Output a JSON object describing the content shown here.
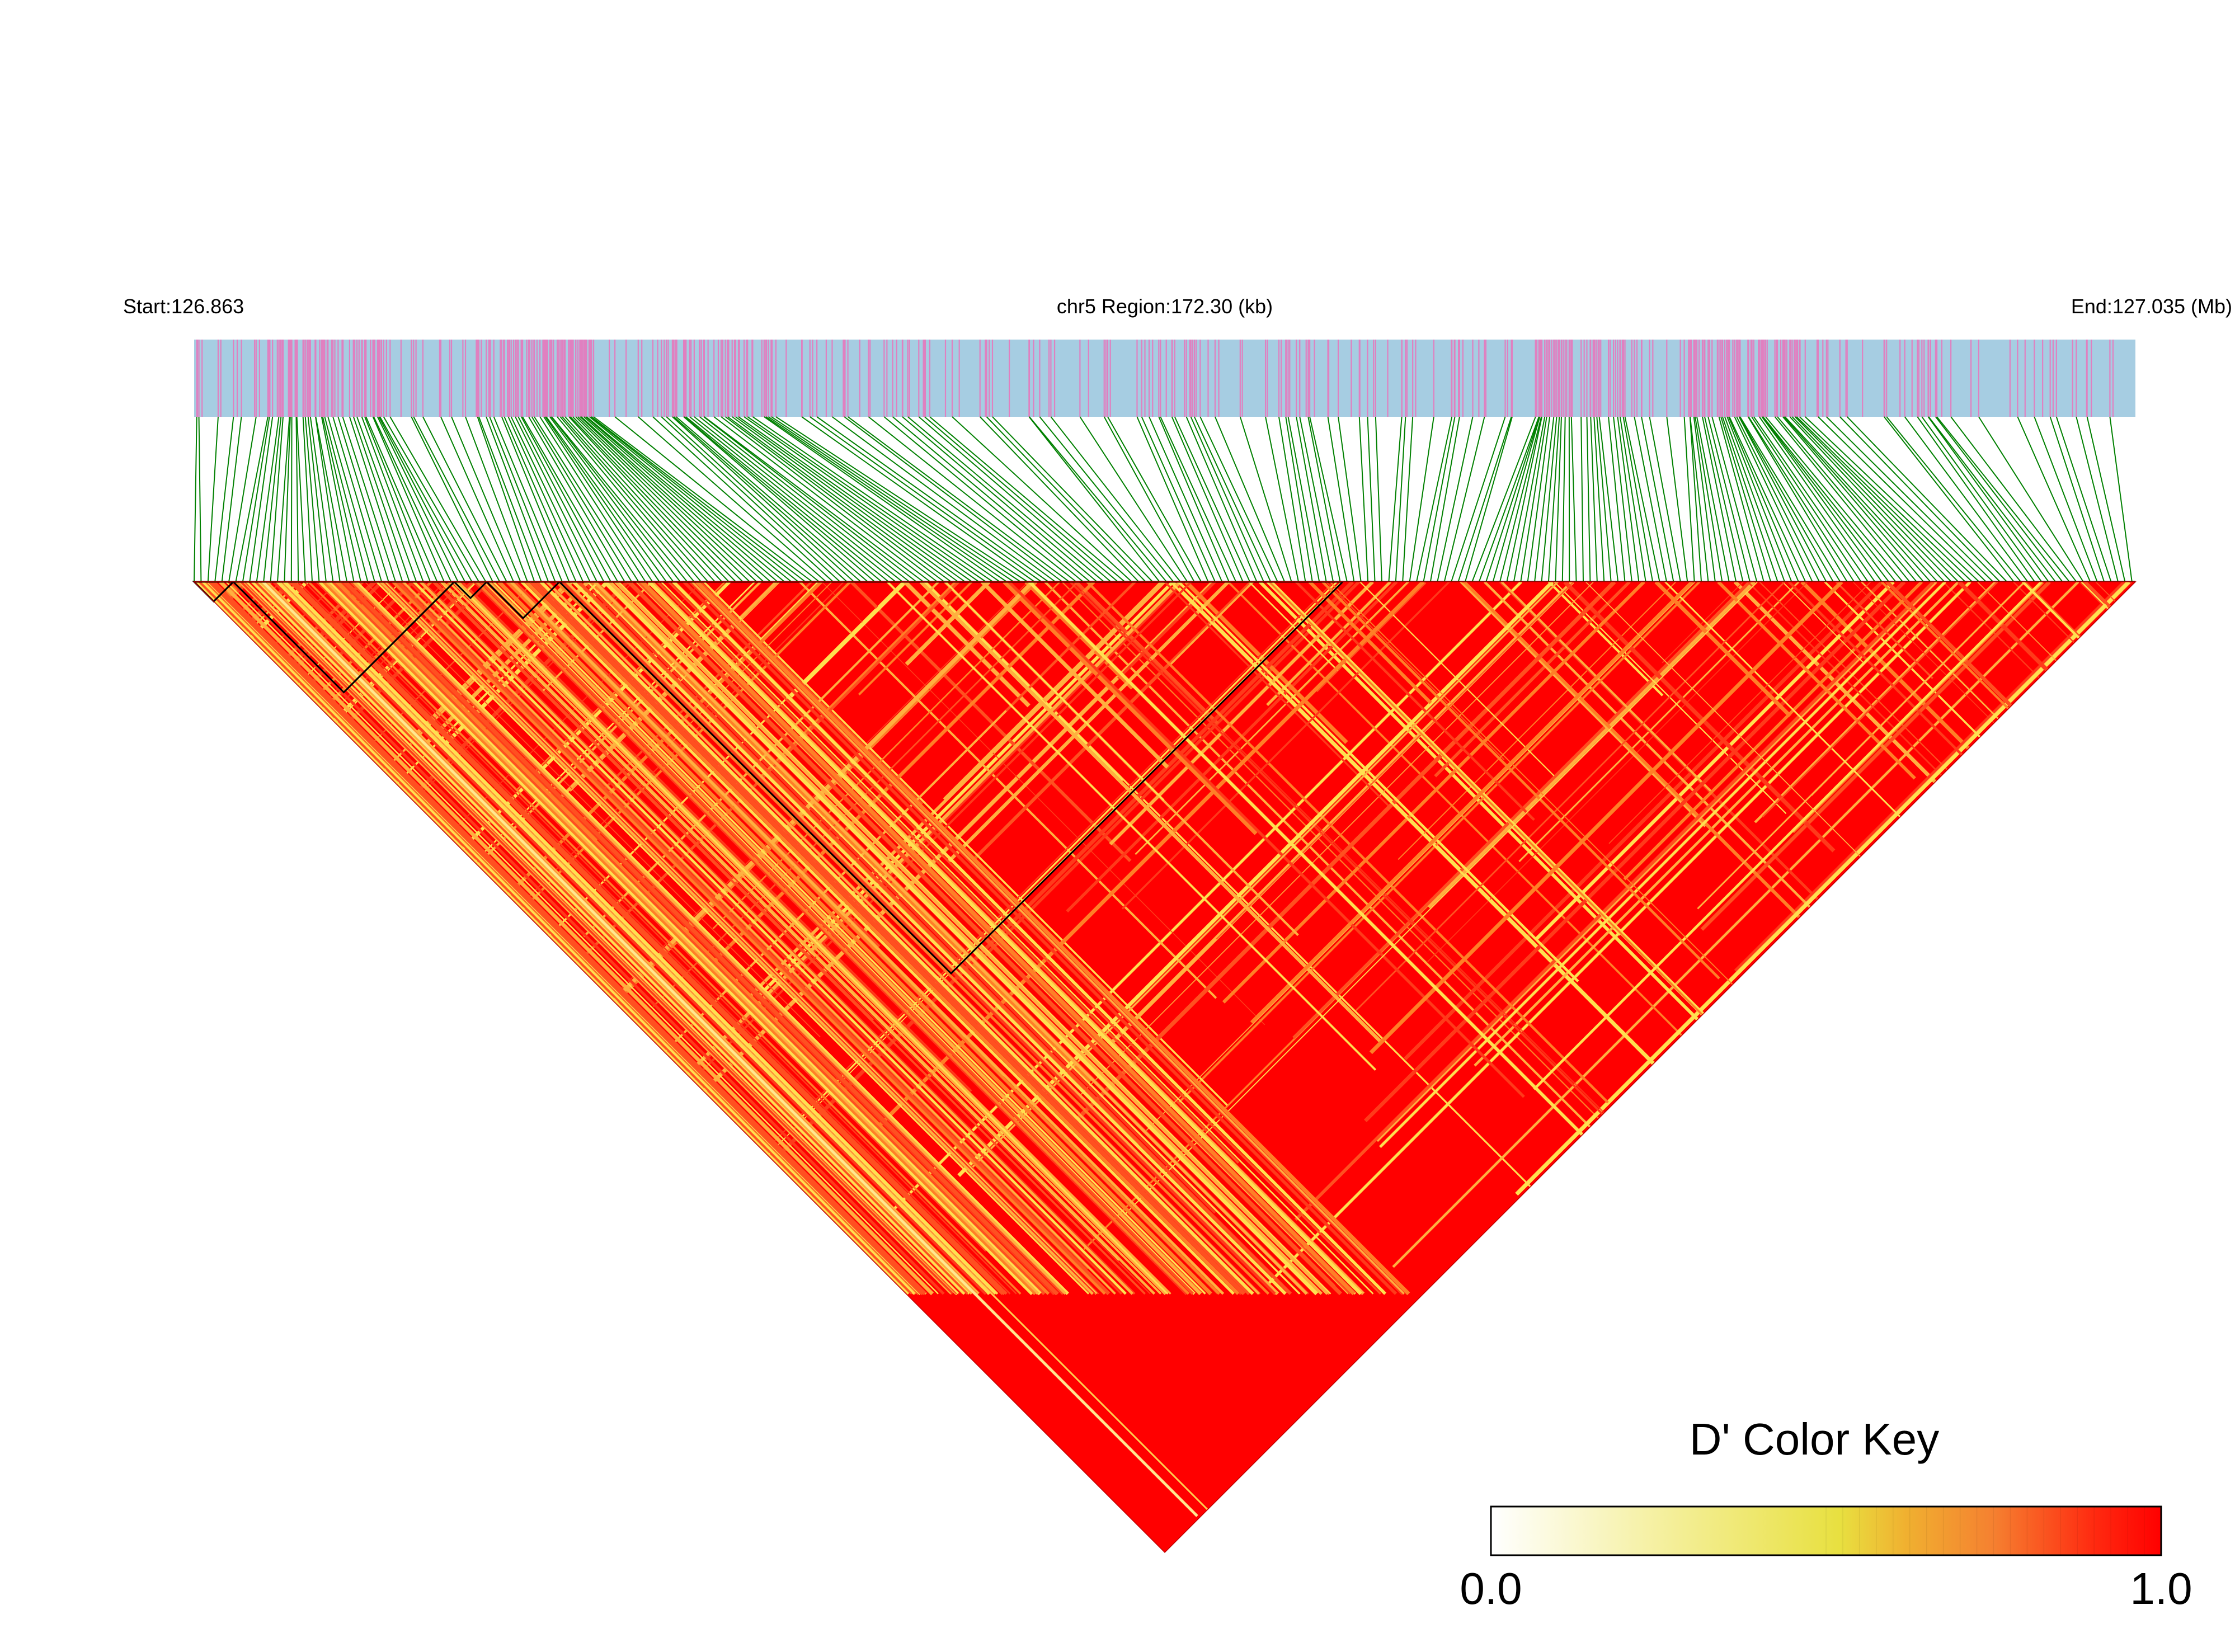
{
  "header": {
    "start_label": "Start:126.863",
    "region_label": "chr5 Region:172.30 (kb)",
    "end_label": "End:127.035 (Mb)"
  },
  "color_key": {
    "title": "D' Color Key",
    "min_label": "0.0",
    "max_label": "1.0",
    "gradient_stops": [
      "#ffffff",
      "#f5f0a0",
      "#e8e040",
      "#f0b030",
      "#f58030",
      "#ff2a10",
      "#ff0000"
    ]
  },
  "colors": {
    "track_background": "#a6cde2",
    "snp_tick": "#e080c0",
    "connector": "#008000",
    "high_ld": "#ff0000",
    "mid_ld": "#ff7f27",
    "low_ld": "#ffe050",
    "block_outline": "#000000"
  },
  "chart_data": {
    "type": "heatmap",
    "chromosome": "chr5",
    "start_mb": 126.863,
    "end_mb": 127.035,
    "region_kb": 172.3,
    "snp_count": 560,
    "value_name": "D'",
    "value_range": [
      0.0,
      1.0
    ],
    "dominant_value": 1.0
  }
}
